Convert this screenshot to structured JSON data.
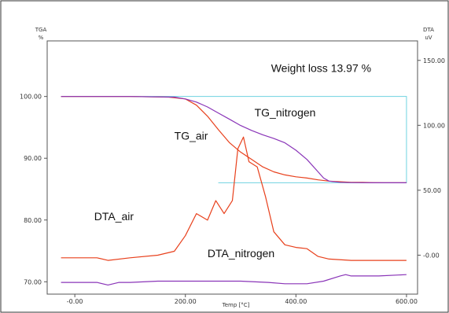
{
  "chart_data": {
    "type": "line",
    "title": "",
    "xlabel": "Temp [°C]",
    "y_left_label_lines": [
      "TGA",
      "%"
    ],
    "y_right_label_lines": [
      "DTA",
      "uV"
    ],
    "xlim": [
      -50,
      620
    ],
    "ylim_left": [
      68,
      109
    ],
    "ylim_right": [
      -30,
      165
    ],
    "x_ticks": [
      {
        "value": 0,
        "label": "-0.00"
      },
      {
        "value": 200,
        "label": "200.00"
      },
      {
        "value": 400,
        "label": "400.00"
      },
      {
        "value": 600,
        "label": "600.00"
      }
    ],
    "y_left_ticks": [
      {
        "value": 70,
        "label": "70.00"
      },
      {
        "value": 80,
        "label": "80.00"
      },
      {
        "value": 90,
        "label": "90.00"
      },
      {
        "value": 100,
        "label": "100.00"
      }
    ],
    "y_right_ticks": [
      {
        "value": 0,
        "label": "-0.00"
      },
      {
        "value": 50,
        "label": "50.00"
      },
      {
        "value": 100,
        "label": "100.00"
      },
      {
        "value": 150,
        "label": "150.00"
      }
    ],
    "grid": false,
    "colors": {
      "air": "#e8401c",
      "nitrogen": "#8a35b8",
      "weight_loss_box": "#6fd3e0",
      "axes": "#555555"
    },
    "series": [
      {
        "name": "TG_air",
        "axis": "left",
        "color": "#e8401c",
        "x": [
          -25,
          100,
          170,
          200,
          220,
          240,
          260,
          280,
          300,
          320,
          340,
          360,
          380,
          400,
          420,
          440,
          460,
          480,
          500,
          520,
          540,
          560,
          580,
          600
        ],
        "y": [
          100.0,
          100.0,
          99.9,
          99.6,
          98.6,
          96.8,
          94.6,
          92.5,
          91.0,
          89.8,
          88.6,
          87.8,
          87.3,
          87.0,
          86.8,
          86.5,
          86.3,
          86.2,
          86.1,
          86.1,
          86.05,
          86.03,
          86.03,
          86.03
        ]
      },
      {
        "name": "TG_nitrogen",
        "axis": "left",
        "color": "#8a35b8",
        "x": [
          -25,
          100,
          180,
          200,
          220,
          240,
          260,
          280,
          300,
          320,
          340,
          360,
          380,
          400,
          420,
          440,
          450,
          460,
          480,
          500,
          540,
          580,
          600
        ],
        "y": [
          100.0,
          100.0,
          99.9,
          99.6,
          99.1,
          98.3,
          97.3,
          96.3,
          95.3,
          94.5,
          93.8,
          93.2,
          92.5,
          91.3,
          89.8,
          87.8,
          86.8,
          86.3,
          86.1,
          86.05,
          86.03,
          86.03,
          86.03
        ]
      },
      {
        "name": "DTA_air",
        "axis": "right",
        "color": "#e8401c",
        "x": [
          -25,
          10,
          40,
          60,
          100,
          150,
          180,
          200,
          220,
          240,
          255,
          270,
          285,
          295,
          305,
          315,
          330,
          345,
          360,
          380,
          400,
          420,
          440,
          460,
          500,
          550,
          600
        ],
        "y": [
          -2,
          -2,
          -2,
          -4,
          -2,
          0,
          3,
          15,
          32,
          27,
          42,
          32,
          42,
          82,
          91,
          72,
          68,
          45,
          18,
          8,
          6,
          5,
          -1,
          -3,
          -4,
          -4,
          -4
        ]
      },
      {
        "name": "DTA_nitrogen",
        "axis": "right",
        "color": "#8a35b8",
        "x": [
          -25,
          10,
          40,
          60,
          80,
          100,
          150,
          200,
          250,
          300,
          350,
          380,
          420,
          450,
          480,
          490,
          500,
          550,
          600
        ],
        "y": [
          -21,
          -21,
          -21,
          -23,
          -21,
          -21,
          -20,
          -20,
          -20,
          -20,
          -21,
          -22,
          -22,
          -20,
          -16,
          -15,
          -16,
          -16,
          -15
        ]
      }
    ],
    "annotations": [
      {
        "text": "Weight loss 13.97 %",
        "x": 355,
        "y_left": 104
      },
      {
        "text": "TG_nitrogen",
        "x": 325,
        "y_left": 96.8
      },
      {
        "text": "TG_air",
        "x": 180,
        "y_left": 93.0
      },
      {
        "text": "DTA_air",
        "x": 35,
        "y_left": 80.0
      },
      {
        "text": "DTA_nitrogen",
        "x": 240,
        "y_left": 74.0
      }
    ],
    "weight_loss_box": {
      "x_start": -25,
      "x_end": 600,
      "y_top": 100.0,
      "y_bottom": 86.03
    }
  }
}
